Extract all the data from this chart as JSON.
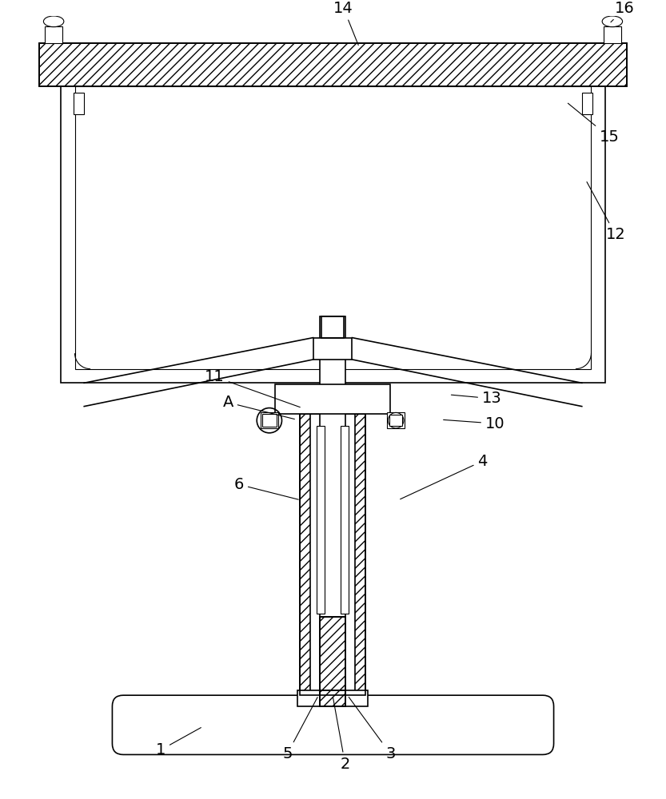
{
  "fig_width": 8.33,
  "fig_height": 10.0,
  "dpi": 100,
  "bg_color": "#ffffff",
  "line_color": "#000000",
  "lw": 1.2,
  "tlw": 0.8,
  "label_fontsize": 14,
  "arrow_lw": 0.8
}
